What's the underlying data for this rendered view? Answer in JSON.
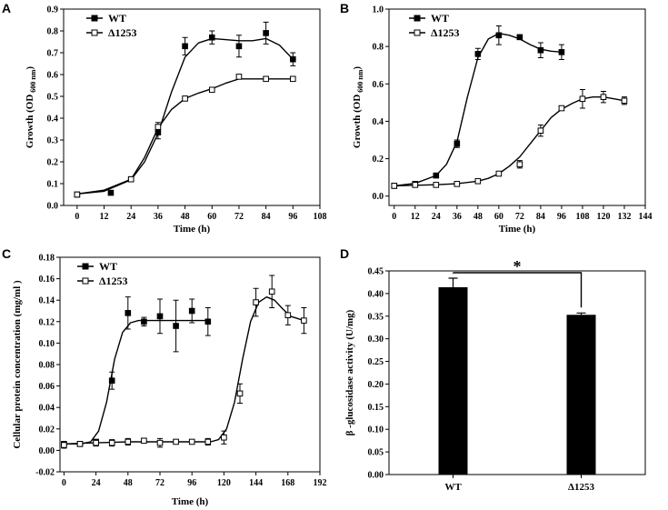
{
  "chart_data": [
    {
      "panel": "A",
      "type": "line",
      "xlabel": "Time (h)",
      "ylabel": "Growth (OD",
      "ylabel_sub": "600 nm",
      "ylabel_end": ")",
      "xlim": [
        -6,
        108
      ],
      "ylim": [
        0.0,
        0.9
      ],
      "xticks": [
        0,
        12,
        24,
        36,
        48,
        60,
        72,
        84,
        96,
        108
      ],
      "yticks": [
        0.0,
        0.1,
        0.2,
        0.3,
        0.4,
        0.5,
        0.6,
        0.7,
        0.8,
        0.9
      ],
      "legend": [
        "WT",
        "Δ1253"
      ],
      "series": [
        {
          "name": "WT",
          "marker": "filled-square",
          "x": [
            0,
            15,
            24,
            36,
            48,
            60,
            72,
            84,
            96
          ],
          "y": [
            0.05,
            0.058,
            0.12,
            0.335,
            0.73,
            0.77,
            0.73,
            0.79,
            0.67
          ],
          "err": [
            0.005,
            0.005,
            0.01,
            0.03,
            0.04,
            0.03,
            0.05,
            0.05,
            0.03
          ],
          "fit_x": [
            0,
            12,
            24,
            30,
            36,
            42,
            48,
            54,
            60,
            66,
            72,
            78,
            84,
            90,
            96
          ],
          "fit_y": [
            0.053,
            0.065,
            0.118,
            0.2,
            0.33,
            0.52,
            0.68,
            0.745,
            0.765,
            0.76,
            0.755,
            0.755,
            0.765,
            0.735,
            0.67
          ]
        },
        {
          "name": "Δ1253",
          "marker": "open-square",
          "x": [
            0,
            24,
            36,
            48,
            60,
            72,
            84,
            96
          ],
          "y": [
            0.05,
            0.12,
            0.36,
            0.49,
            0.53,
            0.59,
            0.58,
            0.58
          ],
          "err": [
            0.005,
            0.01,
            0.02,
            0.01,
            0.01,
            0.01,
            0.005,
            0.005
          ],
          "fit_x": [
            0,
            12,
            24,
            30,
            36,
            42,
            48,
            54,
            60,
            66,
            72,
            78,
            84,
            90,
            96
          ],
          "fit_y": [
            0.053,
            0.07,
            0.12,
            0.22,
            0.355,
            0.44,
            0.49,
            0.515,
            0.535,
            0.56,
            0.58,
            0.58,
            0.58,
            0.58,
            0.58
          ]
        }
      ]
    },
    {
      "panel": "B",
      "type": "line",
      "xlabel": "Time (h)",
      "ylabel": "Growth (OD",
      "ylabel_sub": "600 nm",
      "ylabel_end": ")",
      "xlim": [
        -3,
        144
      ],
      "ylim": [
        -0.05,
        1.0
      ],
      "xticks": [
        0,
        12,
        24,
        36,
        48,
        60,
        72,
        84,
        96,
        108,
        120,
        132,
        144
      ],
      "yticks": [
        0.0,
        0.2,
        0.4,
        0.6,
        0.8,
        1.0
      ],
      "legend": [
        "WT",
        "Δ1253"
      ],
      "series": [
        {
          "name": "WT",
          "marker": "filled-square",
          "x": [
            0,
            12,
            24,
            36,
            48,
            60,
            72,
            84,
            96
          ],
          "y": [
            0.055,
            0.065,
            0.11,
            0.28,
            0.76,
            0.86,
            0.85,
            0.78,
            0.77
          ],
          "err": [
            0.005,
            0.005,
            0.01,
            0.02,
            0.03,
            0.05,
            0.01,
            0.04,
            0.04
          ],
          "fit_x": [
            0,
            12,
            24,
            30,
            36,
            42,
            48,
            54,
            60,
            66,
            72,
            78,
            84,
            90,
            96
          ],
          "fit_y": [
            0.055,
            0.068,
            0.11,
            0.17,
            0.29,
            0.53,
            0.74,
            0.84,
            0.87,
            0.86,
            0.84,
            0.81,
            0.785,
            0.775,
            0.77
          ]
        },
        {
          "name": "Δ1253",
          "marker": "open-square",
          "x": [
            0,
            12,
            24,
            36,
            48,
            60,
            72,
            84,
            96,
            108,
            120,
            132
          ],
          "y": [
            0.055,
            0.06,
            0.06,
            0.065,
            0.08,
            0.12,
            0.17,
            0.35,
            0.47,
            0.52,
            0.53,
            0.51
          ],
          "err": [
            0.005,
            0.005,
            0.005,
            0.005,
            0.005,
            0.01,
            0.02,
            0.03,
            0.01,
            0.05,
            0.03,
            0.02
          ],
          "fit_x": [
            0,
            12,
            24,
            36,
            48,
            54,
            60,
            66,
            72,
            78,
            84,
            90,
            96,
            102,
            108,
            114,
            120,
            126,
            132
          ],
          "fit_y": [
            0.055,
            0.058,
            0.061,
            0.066,
            0.08,
            0.095,
            0.12,
            0.16,
            0.21,
            0.28,
            0.35,
            0.42,
            0.465,
            0.495,
            0.52,
            0.53,
            0.53,
            0.52,
            0.51
          ]
        }
      ]
    },
    {
      "panel": "C",
      "type": "line",
      "xlabel": "Time (h)",
      "ylabel": "Cellular protein concentration  (mg/ml )",
      "xlim": [
        -3,
        192
      ],
      "ylim": [
        -0.02,
        0.18
      ],
      "xticks": [
        0,
        24,
        48,
        72,
        96,
        120,
        144,
        168,
        192
      ],
      "yticks": [
        -0.02,
        0.0,
        0.02,
        0.04,
        0.06,
        0.08,
        0.1,
        0.12,
        0.14,
        0.16,
        0.18
      ],
      "legend": [
        "WT",
        "Δ1253"
      ],
      "series": [
        {
          "name": "WT",
          "marker": "filled-square",
          "x": [
            0,
            12,
            24,
            36,
            48,
            60,
            72,
            84,
            96,
            108
          ],
          "y": [
            0.006,
            0.006,
            0.008,
            0.065,
            0.128,
            0.12,
            0.125,
            0.116,
            0.13,
            0.12
          ],
          "err": [
            0.002,
            0.002,
            0.002,
            0.008,
            0.015,
            0.004,
            0.016,
            0.024,
            0.011,
            0.013
          ],
          "fit_x": [
            0,
            12,
            20,
            26,
            32,
            38,
            44,
            50,
            56,
            62,
            72,
            84,
            96,
            108
          ],
          "fit_y": [
            0.006,
            0.006,
            0.008,
            0.018,
            0.045,
            0.085,
            0.11,
            0.119,
            0.121,
            0.121,
            0.121,
            0.121,
            0.121,
            0.121
          ]
        },
        {
          "name": "Δ1253",
          "marker": "open-square",
          "x": [
            0,
            12,
            24,
            36,
            48,
            60,
            72,
            84,
            96,
            108,
            120,
            132,
            144,
            156,
            168,
            180
          ],
          "y": [
            0.005,
            0.006,
            0.007,
            0.007,
            0.008,
            0.009,
            0.007,
            0.008,
            0.008,
            0.008,
            0.012,
            0.053,
            0.138,
            0.148,
            0.126,
            0.121
          ],
          "err": [
            0.003,
            0.002,
            0.003,
            0.003,
            0.003,
            0.002,
            0.004,
            0.002,
            0.002,
            0.003,
            0.006,
            0.009,
            0.013,
            0.015,
            0.009,
            0.012
          ],
          "fit_x": [
            0,
            24,
            48,
            72,
            96,
            110,
            116,
            122,
            128,
            134,
            140,
            146,
            152,
            158,
            164,
            170,
            180
          ],
          "fit_y": [
            0.006,
            0.007,
            0.008,
            0.008,
            0.008,
            0.008,
            0.01,
            0.02,
            0.045,
            0.085,
            0.12,
            0.138,
            0.143,
            0.14,
            0.132,
            0.125,
            0.121
          ]
        }
      ]
    },
    {
      "panel": "D",
      "type": "bar",
      "categories": [
        "WT",
        "Δ1253"
      ],
      "values": [
        0.414,
        0.353
      ],
      "err": [
        0.02,
        0.004
      ],
      "ylabel": "β -glucosidase activity (U/mg)",
      "xlabel": "",
      "ylim": [
        0.0,
        0.45
      ],
      "yticks": [
        0.0,
        0.05,
        0.1,
        0.15,
        0.2,
        0.25,
        0.3,
        0.35,
        0.4,
        0.45
      ],
      "significance": "*"
    }
  ]
}
